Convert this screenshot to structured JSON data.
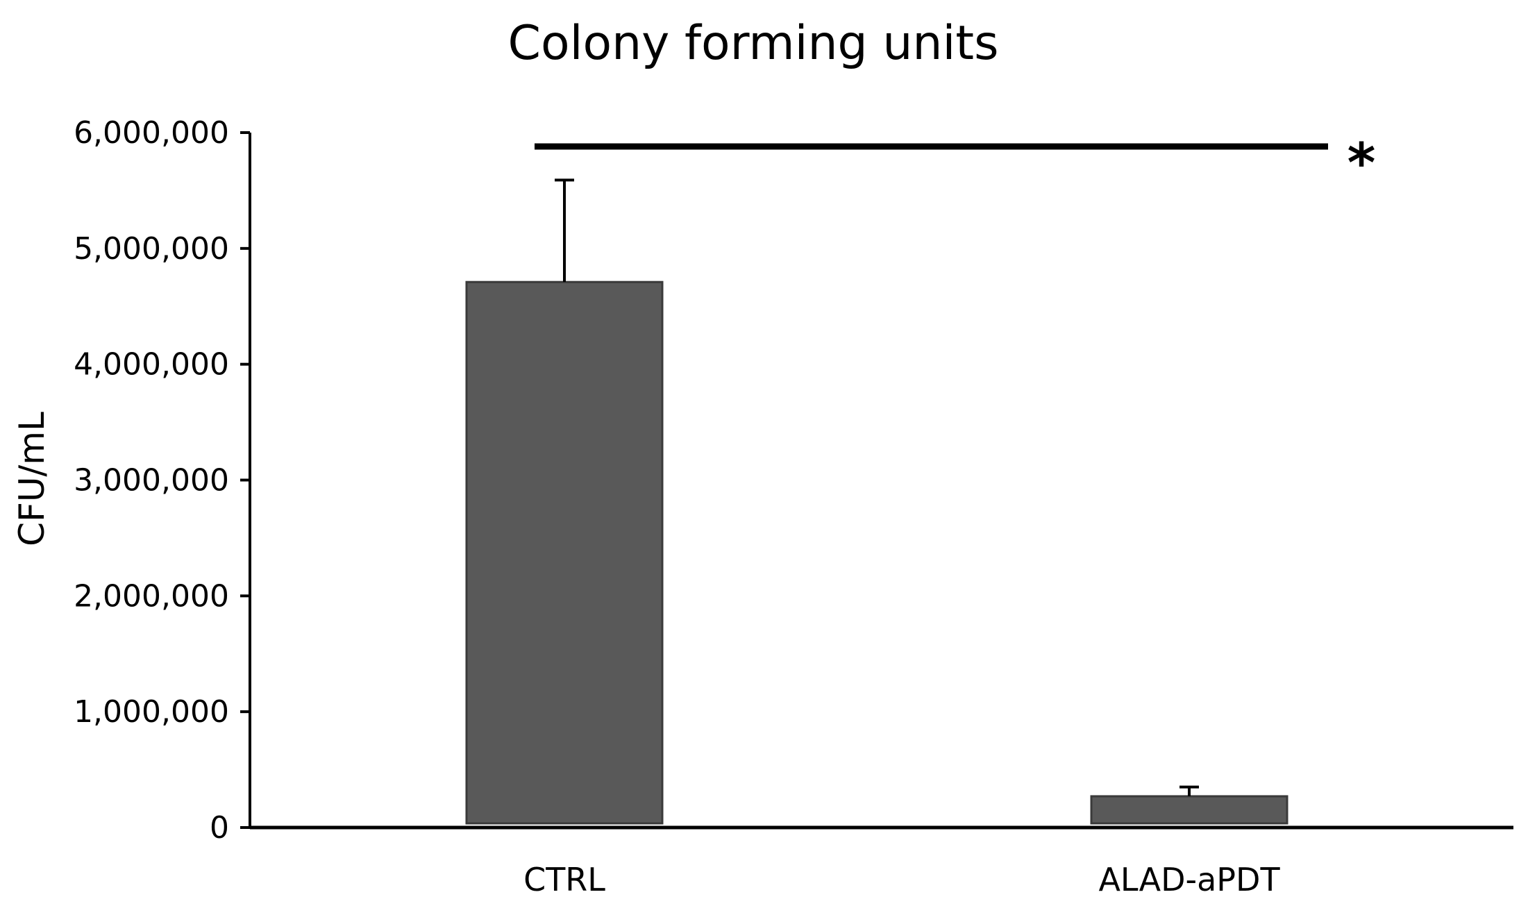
{
  "chart_data": {
    "type": "bar",
    "title": "Colony forming units",
    "xlabel": "",
    "ylabel": "CFU/mL",
    "categories": [
      "CTRL",
      "ALAD-aPDT"
    ],
    "values": [
      4710000,
      270000
    ],
    "error_upper": [
      880000,
      80000
    ],
    "ylim": [
      0,
      6000000
    ],
    "yticks": [
      0,
      1000000,
      2000000,
      3000000,
      4000000,
      5000000,
      6000000
    ],
    "ytick_labels": [
      "0",
      "1,000,000",
      "2,000,000",
      "3,000,000",
      "4,000,000",
      "5,000,000",
      "6,000,000"
    ],
    "significance": {
      "between": [
        "CTRL",
        "ALAD-aPDT"
      ],
      "label": "*"
    },
    "grid": false,
    "legend": "none",
    "bar_color": "#595959",
    "bar_edge_color": "#3a3a3a"
  }
}
